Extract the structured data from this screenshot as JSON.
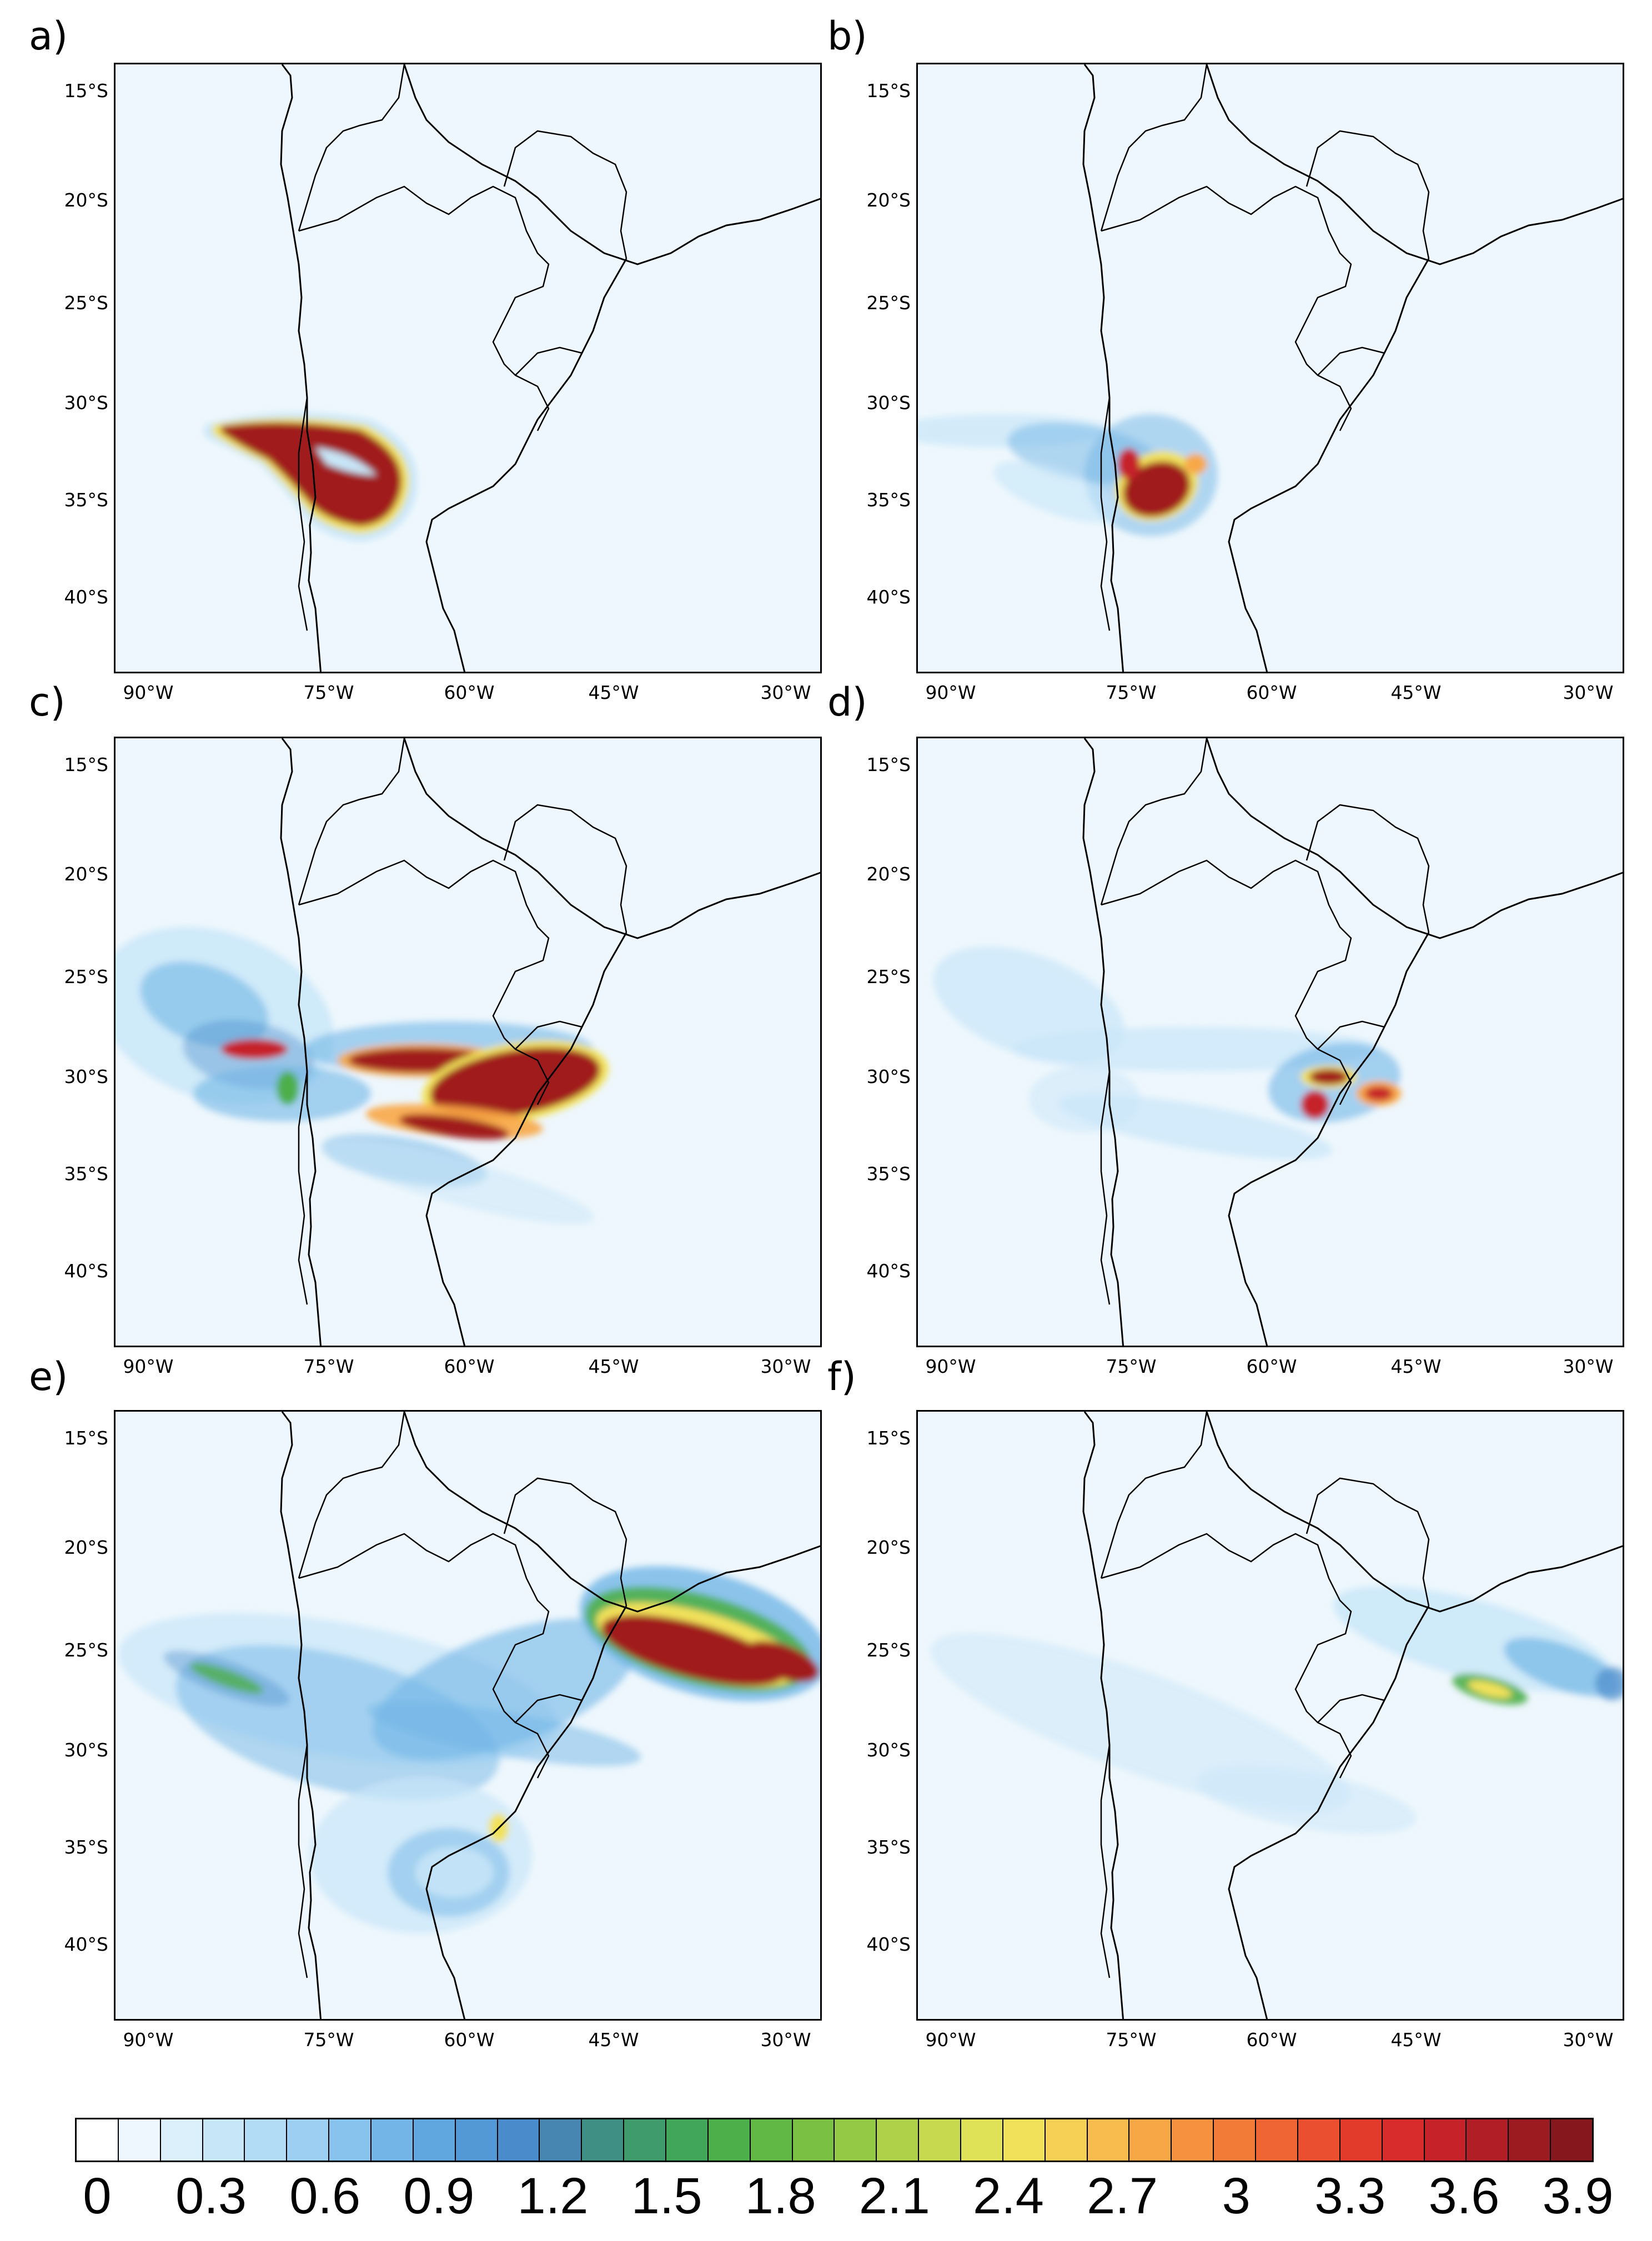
{
  "panels": [
    {
      "label": "a)"
    },
    {
      "label": "b)"
    },
    {
      "label": "c)"
    },
    {
      "label": "d)"
    },
    {
      "label": "e)"
    },
    {
      "label": "f)"
    }
  ],
  "axes": {
    "y_ticks": [
      "15°S",
      "20°S",
      "25°S",
      "30°S",
      "35°S",
      "40°S"
    ],
    "x_ticks": [
      "90°W",
      "75°W",
      "60°W",
      "45°W",
      "30°W"
    ]
  },
  "colorbar": {
    "labels": [
      "0",
      "0.3",
      "0.6",
      "0.9",
      "1.2",
      "1.5",
      "1.8",
      "2.1",
      "2.4",
      "2.7",
      "3",
      "3.3",
      "3.6",
      "3.9"
    ],
    "colors": [
      "#ffffff",
      "#eef7fd",
      "#dcf0fb",
      "#c7e6f8",
      "#b2dcf5",
      "#9ccff1",
      "#87c3ec",
      "#72b5e6",
      "#61a7df",
      "#5299d6",
      "#4a8bcb",
      "#4686b0",
      "#3f8f85",
      "#3f9a6c",
      "#41a55a",
      "#4daf4a",
      "#62b844",
      "#79c043",
      "#93c945",
      "#aed149",
      "#c7d94f",
      "#dfe156",
      "#f1e15a",
      "#f6d055",
      "#f8bc4e",
      "#f8a746",
      "#f5913f",
      "#f27b38",
      "#ef6533",
      "#ea502f",
      "#e23b2b",
      "#d82b2b",
      "#c6222a",
      "#b11e26",
      "#9b1b21",
      "#86181d"
    ]
  },
  "map_colors": {
    "background": "#eef7fd",
    "light_blue": "#c7e6f8",
    "mid_blue": "#72b5e6",
    "dark_blue": "#4a8bcb",
    "green": "#4daf4a",
    "yellow": "#f1e15a",
    "orange": "#f8a746",
    "red": "#c6222a",
    "dark_red": "#a01a1a",
    "coast": "#000000"
  }
}
